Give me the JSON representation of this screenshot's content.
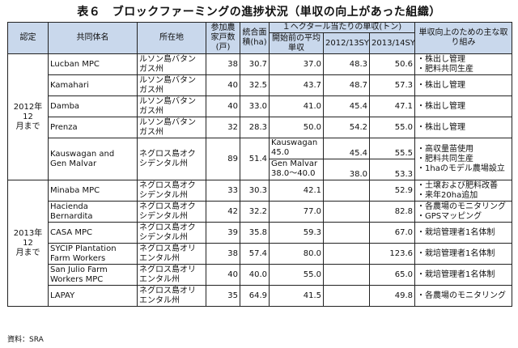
{
  "title": "表６　ブロックファーミングの進捗状況（単収の向上があった組織）",
  "headers": {
    "cert": "認定",
    "org": "共同体名",
    "loc": "所在地",
    "households": "参加農家戸数(戸)",
    "area": "統合面積(ha)",
    "yield_group": "１ヘクタール当たりの単収(トン)",
    "before": "開始前の平均単収",
    "y2012": "2012/13SY",
    "y2013": "2013/14SY",
    "measures": "単収向上のための主な取り組み"
  },
  "groups": [
    {
      "cert": "2012年12\n月まで",
      "rows": [
        {
          "org": "Lucban MPC",
          "loc": "ルソン島バタン\nガス州",
          "households": "38",
          "area": "30.7",
          "before": "37.0",
          "y2012": "48.3",
          "y2013": "50.6",
          "measures": "・株出し管理\n・肥料共同生産"
        },
        {
          "org": "Kamahari",
          "loc": "ルソン島バタン\nガス州",
          "households": "40",
          "area": "32.5",
          "before": "43.7",
          "y2012": "48.7",
          "y2013": "57.3",
          "measures": "・株出し管理"
        },
        {
          "org": "Damba",
          "loc": "ルソン島バタン\nガス州",
          "households": "40",
          "area": "33.0",
          "before": "41.0",
          "y2012": "45.4",
          "y2013": "47.1",
          "measures": "・株出し管理"
        },
        {
          "org": "Prenza",
          "loc": "ルソン島バタン\nガス州",
          "households": "32",
          "area": "28.3",
          "before": "50.0",
          "y2012": "54.2",
          "y2013": "55.0",
          "measures": "・株出し管理"
        },
        {
          "org": "Kauswagan and\nGen Malvar",
          "loc": "ネグロス島オク\nシデンタル州",
          "households": "89",
          "area": "51.4",
          "before_a": "Kauswagan\n45.0",
          "before_b": "Gen Malvar\n38.0〜40.0",
          "y2012_a": "45.4",
          "y2012_b": "38.0",
          "y2013_a": "55.5",
          "y2013_b": "53.3",
          "measures": "・高収量苗使用\n・肥料共同生産\n・1haのモデル農場設立"
        }
      ]
    },
    {
      "cert": "2013年12\n月まで",
      "rows": [
        {
          "org": "Minaba MPC",
          "loc": "ネグロス島オク\nシデンタル州",
          "households": "33",
          "area": "30.3",
          "before": "42.1",
          "y2012": "",
          "y2013": "52.9",
          "measures": "・土壌および肥料改善\n・来年20ha追加"
        },
        {
          "org": "Hacienda\nBernardita",
          "loc": "ネグロス島オク\nシデンタル州",
          "households": "42",
          "area": "32.2",
          "before": "77.0",
          "y2012": "",
          "y2013": "82.8",
          "measures": "・各農場のモニタリング\n・GPSマッピング"
        },
        {
          "org": "CASA MPC",
          "loc": "ネグロス島オク\nシデンタル州",
          "households": "39",
          "area": "35.8",
          "before": "59.3",
          "y2012": "",
          "y2013": "67.0",
          "measures": "・栽培管理者1名体制"
        },
        {
          "org": "SYCIP Plantation\nFarm Workers",
          "loc": "ネグロス島オリ\nエンタル州",
          "households": "38",
          "area": "57.4",
          "before": "80.0",
          "y2012": "",
          "y2013": "123.6",
          "measures": "・栽培管理者1名体制"
        },
        {
          "org": "San Julio Farm\nWorkers MPC",
          "loc": "ネグロス島オリ\nエンタル州",
          "households": "40",
          "area": "40.0",
          "before": "55.0",
          "y2012": "",
          "y2013": "65.0",
          "measures": "・栽培管理者1名体制"
        },
        {
          "org": "LAPAY",
          "loc": "ネグロス島オリ\nエンタル州",
          "households": "35",
          "area": "64.9",
          "before": "41.5",
          "y2012": "",
          "y2013": "49.8",
          "measures": "・各農場のモニタリング"
        }
      ]
    }
  ],
  "source": "資料：SRA"
}
